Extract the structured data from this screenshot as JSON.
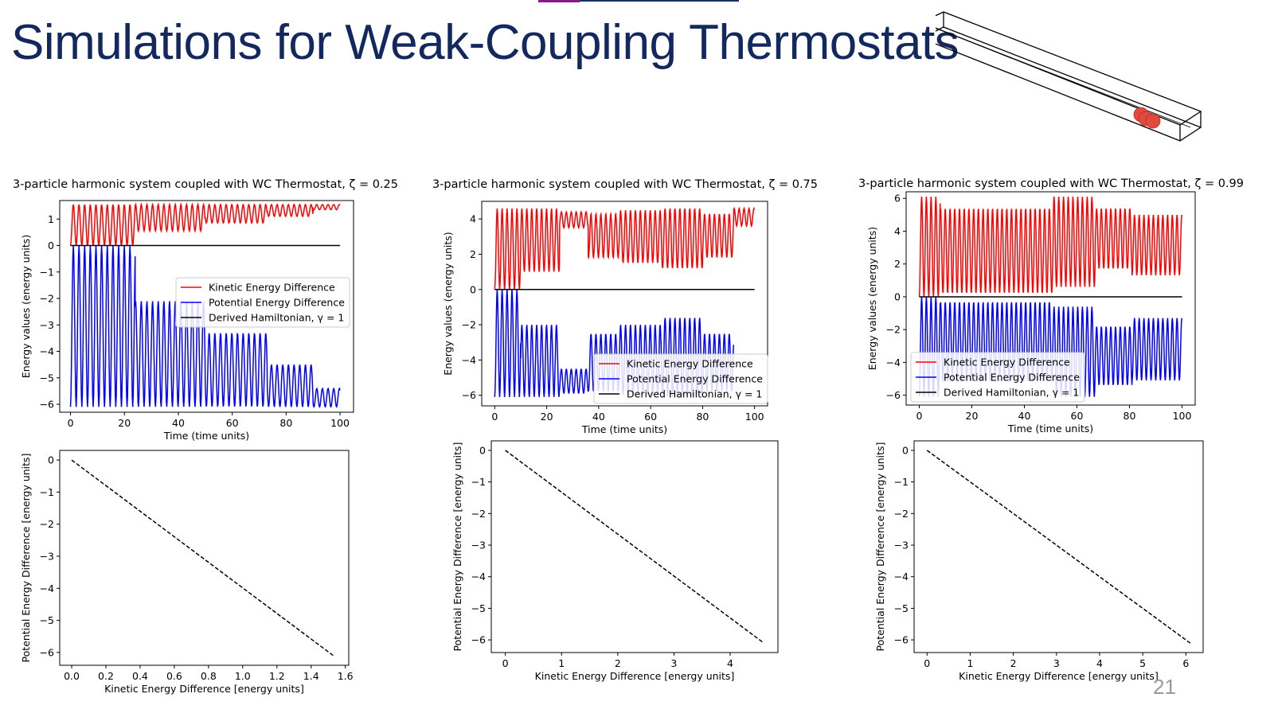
{
  "slide": {
    "title": "Simulations for Weak-Coupling Thermostats",
    "page_number": "21"
  },
  "colors": {
    "title": "#12285e",
    "kinetic": "#ff0000",
    "potential": "#0000ff",
    "hamiltonian": "#000000",
    "particle": "#e34a3f"
  },
  "illustration": {
    "icon": "3d-box-with-three-particles-icon"
  },
  "chart_data": [
    {
      "id": "energy-zeta-025",
      "type": "line",
      "title": "3-particle harmonic system coupled with WC Thermostat, ζ = 0.25",
      "xlabel": "Time (time units)",
      "ylabel": "Energy values (energy units)",
      "xlim": [
        -4,
        105
      ],
      "ylim": [
        -6.3,
        1.7
      ],
      "xticks": [
        0,
        20,
        40,
        60,
        80,
        100
      ],
      "yticks": [
        1,
        0,
        -1,
        -2,
        -3,
        -4,
        -5,
        -6
      ],
      "legend_position": "center-right",
      "grid": false,
      "period": 2.1,
      "series": [
        {
          "name": "Kinetic Energy Difference",
          "color": "#ff0000",
          "segments": [
            {
              "t0": 0,
              "t1": 24,
              "lo": 0,
              "hi": 1.55
            },
            {
              "t0": 24,
              "t1": 50,
              "lo": 0.55,
              "hi": 1.55
            },
            {
              "t0": 50,
              "t1": 73,
              "lo": 0.85,
              "hi": 1.55
            },
            {
              "t0": 73,
              "t1": 90,
              "lo": 1.1,
              "hi": 1.55
            },
            {
              "t0": 90,
              "t1": 100,
              "lo": 1.35,
              "hi": 1.55
            }
          ]
        },
        {
          "name": "Potential Energy Difference",
          "color": "#0000ff",
          "segments": [
            {
              "t0": 0,
              "t1": 24,
              "lo": -6.1,
              "hi": 0
            },
            {
              "t0": 24,
              "t1": 50,
              "lo": -6.1,
              "hi": -2.1
            },
            {
              "t0": 50,
              "t1": 73,
              "lo": -6.1,
              "hi": -3.3
            },
            {
              "t0": 73,
              "t1": 90,
              "lo": -6.1,
              "hi": -4.5
            },
            {
              "t0": 90,
              "t1": 100,
              "lo": -6.1,
              "hi": -5.4
            }
          ]
        },
        {
          "name": "Derived Hamiltonian, γ = 1",
          "color": "#000000",
          "constant": 0,
          "t0": 0,
          "t1": 100
        }
      ]
    },
    {
      "id": "energy-zeta-075",
      "type": "line",
      "title": "3-particle harmonic system coupled with WC Thermostat, ζ = 0.75",
      "xlabel": "Time (time units)",
      "ylabel": "Energy values (energy units)",
      "xlim": [
        -5,
        105
      ],
      "ylim": [
        -6.6,
        5.0
      ],
      "xticks": [
        0,
        20,
        40,
        60,
        80,
        100
      ],
      "yticks": [
        4,
        2,
        0,
        -2,
        -4,
        -6
      ],
      "legend_position": "lower-right",
      "grid": false,
      "period": 1.9,
      "series": [
        {
          "name": "Kinetic Energy Difference",
          "color": "#ff0000",
          "segments": [
            {
              "t0": 0,
              "t1": 10,
              "lo": 0,
              "hi": 4.6
            },
            {
              "t0": 10,
              "t1": 25,
              "lo": 1.0,
              "hi": 4.6
            },
            {
              "t0": 25,
              "t1": 36,
              "lo": 3.5,
              "hi": 4.4
            },
            {
              "t0": 36,
              "t1": 48,
              "lo": 1.8,
              "hi": 4.3
            },
            {
              "t0": 48,
              "t1": 64,
              "lo": 1.5,
              "hi": 4.5
            },
            {
              "t0": 64,
              "t1": 80,
              "lo": 1.2,
              "hi": 4.6
            },
            {
              "t0": 80,
              "t1": 92,
              "lo": 1.8,
              "hi": 4.3
            },
            {
              "t0": 92,
              "t1": 100,
              "lo": 3.6,
              "hi": 4.6
            }
          ]
        },
        {
          "name": "Potential Energy Difference",
          "color": "#0000ff",
          "segments": [
            {
              "t0": 0,
              "t1": 10,
              "lo": -6.1,
              "hi": 0
            },
            {
              "t0": 10,
              "t1": 25,
              "lo": -6.1,
              "hi": -2.0
            },
            {
              "t0": 25,
              "t1": 36,
              "lo": -5.9,
              "hi": -4.5
            },
            {
              "t0": 36,
              "t1": 48,
              "lo": -5.8,
              "hi": -2.5
            },
            {
              "t0": 48,
              "t1": 64,
              "lo": -6.0,
              "hi": -2.0
            },
            {
              "t0": 64,
              "t1": 80,
              "lo": -6.1,
              "hi": -1.6
            },
            {
              "t0": 80,
              "t1": 92,
              "lo": -5.8,
              "hi": -2.5
            }
          ]
        },
        {
          "name": "Derived Hamiltonian, γ = 1",
          "color": "#000000",
          "constant": 0,
          "t0": 0,
          "t1": 100
        }
      ]
    },
    {
      "id": "energy-zeta-099",
      "type": "line",
      "title": "3-particle harmonic system coupled with WC Thermostat, ζ = 0.99",
      "xlabel": "Time (time units)",
      "ylabel": "Energy values (energy units)",
      "xlim": [
        -5,
        105
      ],
      "ylim": [
        -6.6,
        6.4
      ],
      "xticks": [
        0,
        20,
        40,
        60,
        80,
        100
      ],
      "yticks": [
        6,
        4,
        2,
        0,
        -2,
        -4,
        -6
      ],
      "legend_position": "lower-left",
      "grid": false,
      "period": 1.8,
      "series": [
        {
          "name": "Kinetic Energy Difference",
          "color": "#ff0000",
          "segments": [
            {
              "t0": 0,
              "t1": 8,
              "lo": 0,
              "hi": 6.1
            },
            {
              "t0": 8,
              "t1": 51,
              "lo": 0.2,
              "hi": 5.4
            },
            {
              "t0": 51,
              "t1": 67,
              "lo": 0.6,
              "hi": 6.1
            },
            {
              "t0": 67,
              "t1": 81,
              "lo": 1.7,
              "hi": 5.4
            },
            {
              "t0": 81,
              "t1": 100,
              "lo": 1.3,
              "hi": 5.0
            }
          ]
        },
        {
          "name": "Potential Energy Difference",
          "color": "#0000ff",
          "segments": [
            {
              "t0": 0,
              "t1": 8,
              "lo": -6.1,
              "hi": 0
            },
            {
              "t0": 8,
              "t1": 51,
              "lo": -5.2,
              "hi": -0.3
            },
            {
              "t0": 51,
              "t1": 67,
              "lo": -6.1,
              "hi": -0.6
            },
            {
              "t0": 67,
              "t1": 81,
              "lo": -5.4,
              "hi": -1.8
            },
            {
              "t0": 81,
              "t1": 100,
              "lo": -5.1,
              "hi": -1.3
            }
          ]
        },
        {
          "name": "Derived Hamiltonian, γ = 1",
          "color": "#000000",
          "constant": 0,
          "t0": 0,
          "t1": 100
        }
      ]
    },
    {
      "id": "phase-zeta-025",
      "type": "line",
      "xlabel": "Kinetic Energy Difference [energy units]",
      "ylabel": "Potential Energy Difference [energy units]",
      "xlim": [
        -0.07,
        1.62
      ],
      "ylim": [
        -6.4,
        0.3
      ],
      "xticks": [
        0.0,
        0.2,
        0.4,
        0.6,
        0.8,
        1.0,
        1.2,
        1.4,
        1.6
      ],
      "yticks": [
        0,
        -1,
        -2,
        -3,
        -4,
        -5,
        -6
      ],
      "decimals": 1,
      "grid": false,
      "x": [
        0,
        1.53
      ],
      "y": [
        0,
        -6.1
      ],
      "line_style": "dashed",
      "color": "#000000"
    },
    {
      "id": "phase-zeta-075",
      "type": "line",
      "xlabel": "Kinetic Energy Difference [energy units]",
      "ylabel": "Potential Energy Difference [energy units]",
      "xlim": [
        -0.25,
        4.85
      ],
      "ylim": [
        -6.4,
        0.3
      ],
      "xticks": [
        0,
        1,
        2,
        3,
        4
      ],
      "yticks": [
        0,
        -1,
        -2,
        -3,
        -4,
        -5,
        -6
      ],
      "grid": false,
      "x": [
        0,
        4.6
      ],
      "y": [
        0,
        -6.1
      ],
      "line_style": "dashed",
      "color": "#000000"
    },
    {
      "id": "phase-zeta-099",
      "type": "line",
      "xlabel": "Kinetic Energy Difference [energy units]",
      "ylabel": "Potential Energy Difference [energy units]",
      "xlim": [
        -0.3,
        6.4
      ],
      "ylim": [
        -6.4,
        0.3
      ],
      "xticks": [
        0,
        1,
        2,
        3,
        4,
        5,
        6
      ],
      "yticks": [
        0,
        -1,
        -2,
        -3,
        -4,
        -5,
        -6
      ],
      "grid": false,
      "x": [
        0,
        6.1
      ],
      "y": [
        0,
        -6.1
      ],
      "line_style": "dashed",
      "color": "#000000"
    }
  ]
}
